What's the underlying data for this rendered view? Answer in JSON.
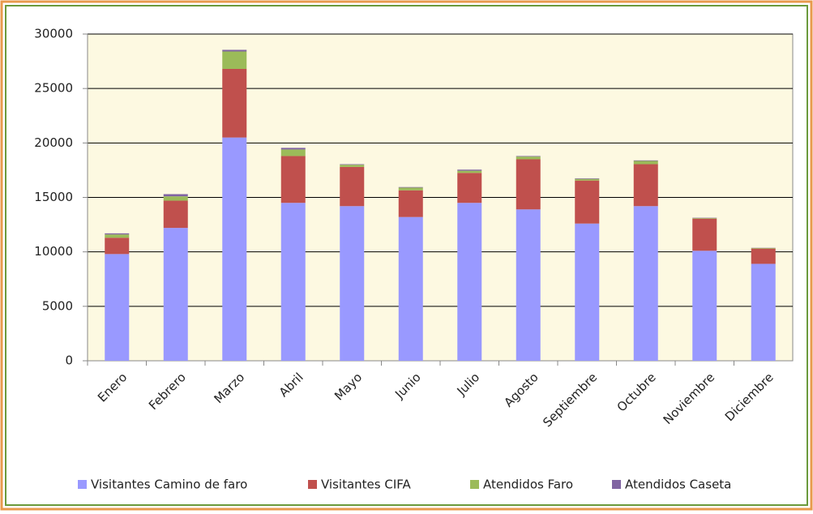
{
  "chart_data": {
    "type": "stacked-bar",
    "categories": [
      "Enero",
      "Febrero",
      "Marzo",
      "Abril",
      "Mayo",
      "Junio",
      "Julio",
      "Agosto",
      "Septiembre",
      "Octubre",
      "Noviembre",
      "Diciembre"
    ],
    "series": [
      {
        "name": "Visitantes Camino de faro",
        "color": "#9999ff",
        "values": [
          9800,
          12200,
          20500,
          14500,
          14200,
          13200,
          14500,
          13900,
          12600,
          14200,
          10100,
          8900
        ]
      },
      {
        "name": "Visitantes CIFA",
        "color": "#c0504d",
        "values": [
          1500,
          2500,
          6300,
          4300,
          3600,
          2450,
          2750,
          4600,
          3950,
          3850,
          2950,
          1400
        ]
      },
      {
        "name": "Atendidos  Faro",
        "color": "#9bbb59",
        "values": [
          300,
          400,
          1600,
          600,
          200,
          250,
          200,
          250,
          150,
          300,
          50,
          50
        ]
      },
      {
        "name": "Atendidos Caseta",
        "color": "#8064a2",
        "values": [
          100,
          200,
          150,
          150,
          50,
          50,
          100,
          50,
          50,
          50,
          30,
          20
        ]
      }
    ],
    "ylim": [
      0,
      30000
    ],
    "yticks": [
      0,
      5000,
      10000,
      15000,
      20000,
      25000,
      30000
    ],
    "grid": true
  }
}
